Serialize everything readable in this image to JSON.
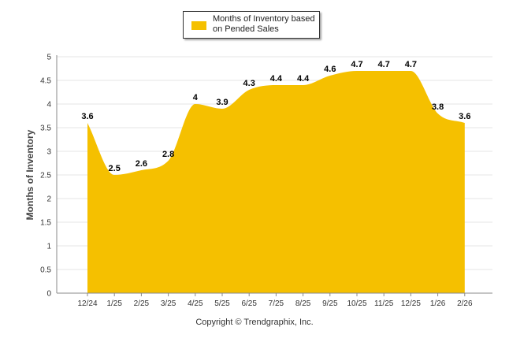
{
  "chart_data": {
    "type": "area",
    "title": "",
    "xlabel": "",
    "ylabel": "Months of Inventory",
    "ylim": [
      0,
      5
    ],
    "yticks": [
      "0",
      "0.5",
      "1",
      "1.5",
      "2",
      "2.5",
      "3",
      "3.5",
      "4",
      "4.5",
      "5"
    ],
    "categories": [
      "12/24",
      "1/25",
      "2/25",
      "3/25",
      "4/25",
      "5/25",
      "6/25",
      "7/25",
      "8/25",
      "9/25",
      "10/25",
      "11/25",
      "12/25",
      "1/26",
      "2/26"
    ],
    "series": [
      {
        "name": "Months of Inventory based on Pended Sales",
        "values": [
          3.6,
          2.5,
          2.6,
          2.8,
          4,
          3.9,
          4.3,
          4.4,
          4.4,
          4.6,
          4.7,
          4.7,
          4.7,
          3.8,
          3.6
        ],
        "labels": [
          "3.6",
          "2.5",
          "2.6",
          "2.8",
          "4",
          "3.9",
          "4.3",
          "4.4",
          "4.4",
          "4.6",
          "4.7",
          "4.7",
          "4.7",
          "3.8",
          "3.6"
        ],
        "color": "#f5c000"
      }
    ],
    "grid": true,
    "legend": {
      "position": "top-center",
      "label": "Months of Inventory based on Pended Sales"
    }
  },
  "footer": {
    "copyright": "Copyright © Trendgraphix, Inc."
  },
  "colors": {
    "area": "#f5c000",
    "grid": "#e6e6e6",
    "axis": "#888888",
    "tick_text": "#333333"
  }
}
